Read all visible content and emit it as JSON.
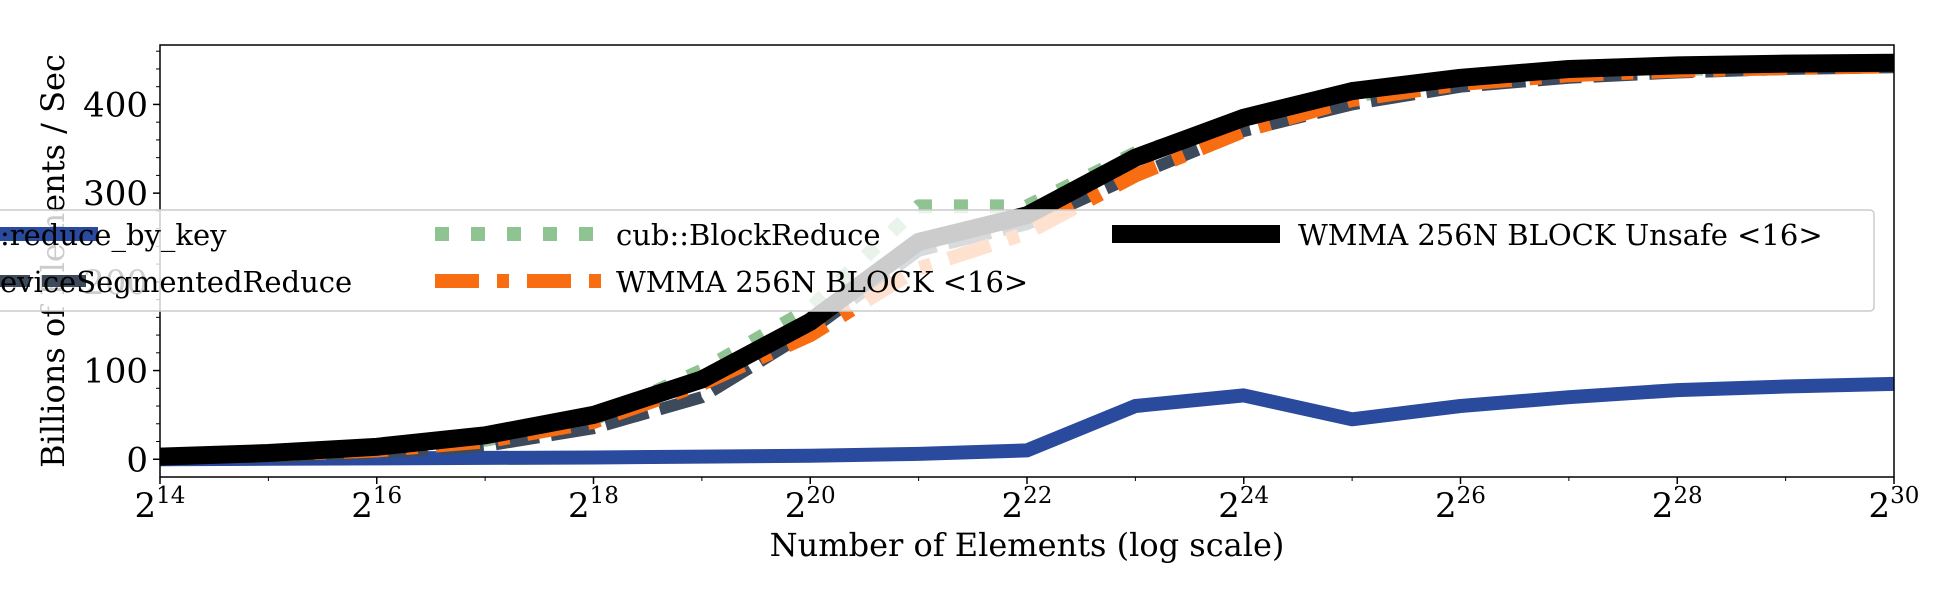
{
  "chart_data": {
    "type": "line",
    "xlabel": "Number of Elements (log scale)",
    "ylabel": "Billions of Elements / Sec",
    "x_scale": "log2",
    "xlim": [
      14,
      30
    ],
    "ylim": [
      -20,
      467
    ],
    "x_ticks": [
      {
        "base": "2",
        "exp": "14",
        "value": 14
      },
      {
        "base": "2",
        "exp": "16",
        "value": 16
      },
      {
        "base": "2",
        "exp": "18",
        "value": 18
      },
      {
        "base": "2",
        "exp": "20",
        "value": 20
      },
      {
        "base": "2",
        "exp": "22",
        "value": 22
      },
      {
        "base": "2",
        "exp": "24",
        "value": 24
      },
      {
        "base": "2",
        "exp": "26",
        "value": 26
      },
      {
        "base": "2",
        "exp": "28",
        "value": 28
      },
      {
        "base": "2",
        "exp": "30",
        "value": 30
      }
    ],
    "y_ticks": [
      {
        "label": "0",
        "value": 0
      },
      {
        "label": "100",
        "value": 100
      },
      {
        "label": "200",
        "value": 200
      },
      {
        "label": "300",
        "value": 300
      },
      {
        "label": "400",
        "value": 400
      }
    ],
    "grid": false,
    "legend_position": "middle, overlapping the plot area, 3 columns",
    "series": [
      {
        "name": "thrust::reduce_by_key",
        "color": "#2a4a9e",
        "style": "solid",
        "x": [
          14,
          15,
          16,
          17,
          18,
          19,
          20,
          21,
          22,
          23,
          24,
          25,
          26,
          27,
          28,
          29,
          30
        ],
        "y": [
          0,
          0.5,
          1,
          1.5,
          2,
          3,
          4,
          6,
          10,
          60,
          72,
          45,
          60,
          70,
          78,
          82,
          85
        ]
      },
      {
        "name": "cub::DeviceSegmentedReduce",
        "color": "#3d4a5c",
        "style": "dashed",
        "x": [
          14,
          15,
          16,
          17,
          18,
          19,
          20,
          21,
          22,
          23,
          24,
          25,
          26,
          27,
          28,
          29,
          30
        ],
        "y": [
          1,
          3,
          7,
          15,
          35,
          70,
          145,
          235,
          265,
          320,
          370,
          400,
          420,
          430,
          436,
          440,
          442
        ]
      },
      {
        "name": "cub::BlockReduce",
        "color": "#8fc391",
        "style": "dotted",
        "x": [
          14,
          15,
          16,
          17,
          18,
          19,
          20,
          21,
          22,
          23,
          24,
          25,
          26,
          27,
          28,
          29,
          30
        ],
        "y": [
          2,
          5,
          10,
          22,
          45,
          100,
          170,
          285,
          285,
          345,
          380,
          410,
          425,
          435,
          440,
          442,
          444
        ]
      },
      {
        "name": "WMMA 256N BLOCK <16>",
        "color": "#f96d12",
        "style": "dashdot",
        "x": [
          14,
          15,
          16,
          17,
          18,
          19,
          20,
          21,
          22,
          23,
          24,
          25,
          26,
          27,
          28,
          29,
          30
        ],
        "y": [
          2,
          5,
          10,
          20,
          42,
          85,
          140,
          215,
          255,
          320,
          370,
          405,
          423,
          433,
          438,
          441,
          443
        ]
      },
      {
        "name": "WMMA 256N BLOCK Unsafe <16>",
        "color": "#000000",
        "style": "solid",
        "x": [
          14,
          15,
          16,
          17,
          18,
          19,
          20,
          21,
          22,
          23,
          24,
          25,
          26,
          27,
          28,
          29,
          30
        ],
        "y": [
          3,
          7,
          14,
          27,
          50,
          90,
          155,
          245,
          275,
          340,
          385,
          415,
          430,
          440,
          444,
          446,
          447
        ]
      }
    ]
  },
  "legend": {
    "entries": [
      {
        "label": ":reduce_by_key",
        "series": 0
      },
      {
        "label": "eviceSegmentedReduce",
        "series": 1
      },
      {
        "label": "cub::BlockReduce",
        "series": 2
      },
      {
        "label": "WMMA 256N BLOCK <16>",
        "series": 3
      },
      {
        "label": "WMMA 256N BLOCK Unsafe <16>",
        "series": 4
      }
    ]
  }
}
